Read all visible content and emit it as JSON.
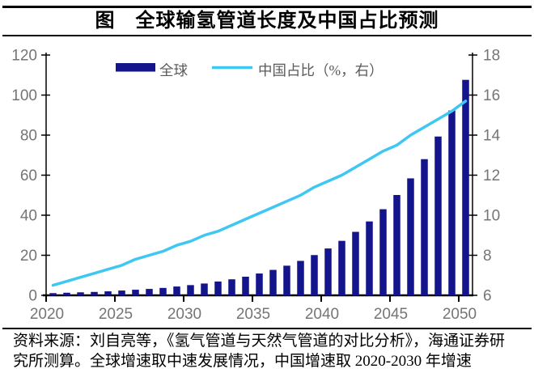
{
  "title": "图　全球输氢管道长度及中国占比预测",
  "legend": {
    "bar_label": "全球",
    "line_label": "中国占比（%，右）"
  },
  "footer": {
    "line1": "资料来源：刘自亮等，《氢气管道与天然气管道的对比分析》，海通证券研",
    "line2": "究所测算。全球增速取中速发展情况，中国增速取 2020-2030 年增速"
  },
  "colors": {
    "bar": "#14148C",
    "line": "#3FC7F3",
    "axis": "#000000",
    "tick_label": "#757575",
    "legend_text": "#595959",
    "background": "#FFFFFF"
  },
  "chart_data": {
    "type": "bar",
    "title": "图　全球输氢管道长度及中国占比预测",
    "x": [
      2020,
      2021,
      2022,
      2023,
      2024,
      2025,
      2026,
      2027,
      2028,
      2029,
      2030,
      2031,
      2032,
      2033,
      2034,
      2035,
      2036,
      2037,
      2038,
      2039,
      2040,
      2041,
      2042,
      2043,
      2044,
      2045,
      2046,
      2047,
      2048,
      2049,
      2050
    ],
    "x_tick_labels": [
      "2020",
      "2025",
      "2030",
      "2035",
      "2040",
      "2045",
      "2050"
    ],
    "left_axis": {
      "min": 0,
      "max": 120,
      "step": 20,
      "ticks": [
        0,
        20,
        40,
        60,
        80,
        100,
        120
      ]
    },
    "right_axis": {
      "min": 6,
      "max": 18,
      "step": 2,
      "ticks": [
        6,
        8,
        10,
        12,
        14,
        16,
        18
      ]
    },
    "series": [
      {
        "name": "全球",
        "type": "bar",
        "axis": "left",
        "values": [
          1.1,
          1.3,
          1.5,
          1.7,
          2.0,
          2.4,
          2.8,
          3.2,
          3.7,
          4.4,
          5.1,
          5.9,
          6.9,
          8.0,
          9.3,
          10.9,
          12.7,
          14.8,
          17.2,
          20.1,
          23.4,
          27.2,
          31.7,
          36.9,
          43.0,
          50.1,
          58.4,
          68.0,
          79.3,
          92.3,
          107.6
        ]
      },
      {
        "name": "中国占比（%，右）",
        "type": "line",
        "axis": "right",
        "values": [
          6.5,
          6.7,
          6.9,
          7.1,
          7.3,
          7.5,
          7.8,
          8.0,
          8.2,
          8.5,
          8.7,
          9.0,
          9.2,
          9.5,
          9.8,
          10.1,
          10.4,
          10.7,
          11.0,
          11.4,
          11.7,
          12.0,
          12.4,
          12.8,
          13.2,
          13.5,
          14.0,
          14.4,
          14.8,
          15.2,
          15.7
        ]
      }
    ],
    "legend_position": "top-center",
    "grid": false
  }
}
